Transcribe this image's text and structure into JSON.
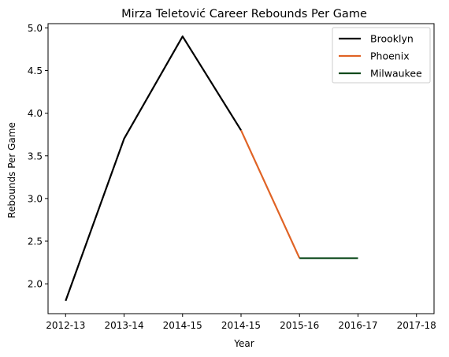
{
  "chart_data": {
    "type": "line",
    "title": "Mirza Teletović Career Rebounds Per Game",
    "xlabel": "Year",
    "ylabel": "Rebounds Per Game",
    "categories": [
      "2012-13",
      "2013-14",
      "2014-15",
      "2014-15",
      "2015-16",
      "2016-17",
      "2017-18"
    ],
    "x_range": [
      -0.3,
      6.3
    ],
    "ylim": [
      1.65,
      5.05
    ],
    "y_ticks": [
      2.0,
      2.5,
      3.0,
      3.5,
      4.0,
      4.5,
      5.0
    ],
    "y_tick_labels": [
      "2.0",
      "2.5",
      "3.0",
      "3.5",
      "4.0",
      "4.5",
      "5.0"
    ],
    "grid": false,
    "legend_position": "top-right",
    "series": [
      {
        "name": "Brooklyn",
        "color": "#000000",
        "points": [
          [
            0,
            1.8
          ],
          [
            1,
            3.7
          ],
          [
            2,
            4.9
          ],
          [
            3,
            3.8
          ]
        ]
      },
      {
        "name": "Phoenix",
        "color": "#e06325",
        "points": [
          [
            3,
            3.8
          ],
          [
            4,
            2.3
          ]
        ]
      },
      {
        "name": "Milwaukee",
        "color": "#0d4a1c",
        "points": [
          [
            4,
            2.3
          ],
          [
            5,
            2.3
          ]
        ]
      }
    ]
  }
}
